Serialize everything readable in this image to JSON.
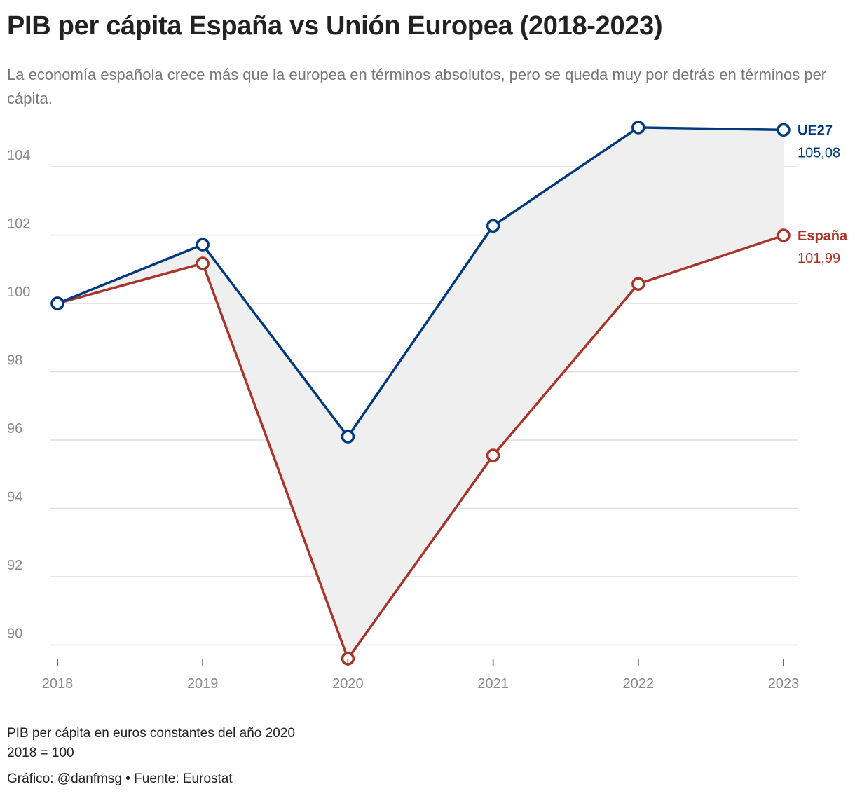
{
  "chart_data": {
    "type": "line",
    "title": "PIB per cápita España vs Unión Europea (2018-2023)",
    "subtitle": "La economía española crece más que la europea en términos absolutos, pero se queda muy por detrás en términos per cápita.",
    "categories": [
      "2018",
      "2019",
      "2020",
      "2021",
      "2022",
      "2023"
    ],
    "ylim": [
      89.6,
      105.6
    ],
    "yticks": [
      90,
      92,
      94,
      96,
      98,
      100,
      102,
      104
    ],
    "ytick_labels": [
      "90",
      "92",
      "94",
      "96",
      "98",
      "100",
      "102",
      "104"
    ],
    "series": [
      {
        "name": "UE27",
        "values": [
          100,
          101.72,
          96.1,
          102.27,
          105.15,
          105.08
        ],
        "end_label": "105,08",
        "color": "#003a7d"
      },
      {
        "name": "España",
        "values": [
          100,
          101.17,
          89.6,
          95.55,
          100.57,
          101.99
        ],
        "end_label": "101,99",
        "color": "#a9352a"
      }
    ],
    "fill_between": {
      "color": "#efefef"
    },
    "grid": true,
    "xlabel": "",
    "ylabel": ""
  },
  "notes": {
    "line1": "PIB per cápita en euros constantes del año 2020",
    "line2": "2018 = 100",
    "credit": "Gráfico: @danfmsg • Fuente: Eurostat"
  },
  "colors": {
    "grid": "#dddddd",
    "axis_text": "#8a8a8a",
    "background": "#ffffff"
  }
}
